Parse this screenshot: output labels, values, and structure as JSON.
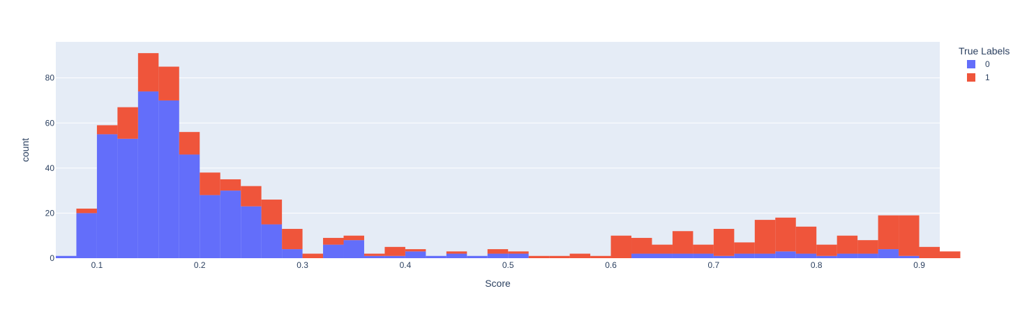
{
  "chart_data": {
    "type": "bar",
    "mode": "stacked-histogram",
    "xlabel": "Score",
    "ylabel": "count",
    "x_range": [
      0.06,
      0.92
    ],
    "y_range": [
      0,
      96
    ],
    "x_ticks": [
      0.1,
      0.2,
      0.3,
      0.4,
      0.5,
      0.6,
      0.7,
      0.8,
      0.9
    ],
    "x_tick_labels": [
      "0.1",
      "0.2",
      "0.3",
      "0.4",
      "0.5",
      "0.6",
      "0.7",
      "0.8",
      "0.9"
    ],
    "y_ticks": [
      0,
      20,
      40,
      60,
      80
    ],
    "y_tick_labels": [
      "0",
      "20",
      "40",
      "60",
      "80"
    ],
    "bin_start": 0.06,
    "bin_width": 0.02,
    "grid": true,
    "legend": {
      "title": "True Labels",
      "position": "right"
    },
    "series": [
      {
        "name": "0",
        "color": "#636efa",
        "values": [
          1,
          20,
          55,
          53,
          74,
          70,
          46,
          28,
          30,
          23,
          15,
          4,
          0,
          6,
          8,
          1,
          1,
          3,
          1,
          2,
          1,
          2,
          2,
          0,
          0,
          0,
          0,
          0,
          2,
          2,
          2,
          2,
          1,
          2,
          2,
          3,
          2,
          1,
          2,
          2,
          4,
          1,
          0,
          0
        ]
      },
      {
        "name": "1",
        "color": "#ef553b",
        "values": [
          0,
          2,
          4,
          14,
          17,
          15,
          10,
          10,
          5,
          9,
          11,
          9,
          2,
          3,
          2,
          1,
          4,
          1,
          0,
          1,
          0,
          2,
          1,
          1,
          1,
          2,
          1,
          10,
          7,
          4,
          10,
          4,
          12,
          5,
          15,
          15,
          12,
          5,
          8,
          6,
          15,
          18,
          5,
          3
        ]
      }
    ]
  }
}
